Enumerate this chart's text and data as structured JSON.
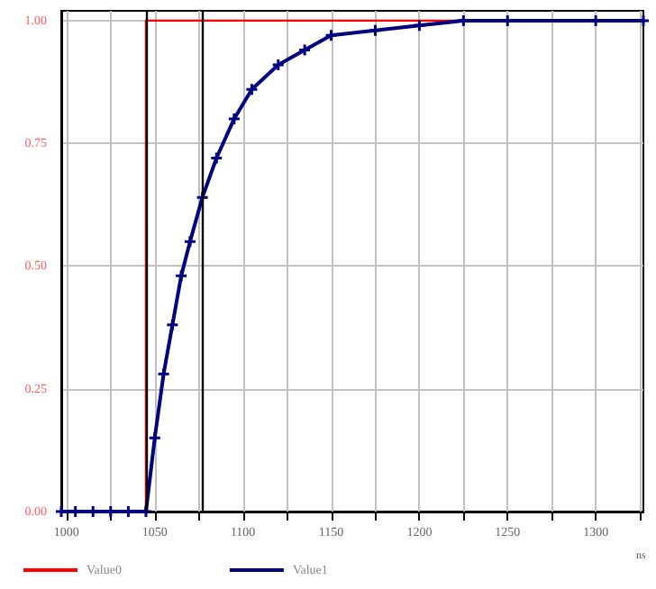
{
  "chart_data": {
    "type": "line",
    "xlabel": "ns",
    "xlim": [
      997,
      1327
    ],
    "ylim": [
      0,
      1.02
    ],
    "xticks": [
      1000,
      {
        "value": 1025,
        "label": null
      },
      1050,
      {
        "value": 1075,
        "label": null
      },
      1100,
      {
        "value": 1125,
        "label": null
      },
      1150,
      {
        "value": 1175,
        "label": null
      },
      1200,
      {
        "value": 1225,
        "label": null
      },
      1250,
      {
        "value": 1275,
        "label": null
      },
      1300,
      {
        "value": 1325,
        "label": null
      }
    ],
    "yticks": [
      {
        "value": 0,
        "label": "0.00"
      },
      0.25,
      {
        "value": 0.5,
        "label": "0.50"
      },
      0.75,
      {
        "value": 1,
        "label": "1.00"
      }
    ],
    "grid": true,
    "legend": "bottom left",
    "ref_lines": [
      {
        "axis": "x",
        "value": 1045,
        "color": "#000000"
      },
      {
        "axis": "x",
        "value": 1077,
        "color": "#000000"
      }
    ],
    "series": [
      {
        "name": "Value0",
        "color": "#ff0000",
        "marker": "none",
        "x": [
          997,
          1045,
          1045,
          1327
        ],
        "values": [
          0,
          0,
          1,
          1
        ]
      },
      {
        "name": "Value1",
        "color": "#000080",
        "marker": "cross",
        "x": [
          997,
          1005,
          1015,
          1025,
          1035,
          1045,
          1050,
          1055,
          1060,
          1065,
          1070,
          1077,
          1085,
          1095,
          1105,
          1120,
          1135,
          1150,
          1175,
          1200,
          1225,
          1250,
          1300,
          1327
        ],
        "values": [
          0,
          0,
          0,
          0,
          0,
          0,
          0.15,
          0.28,
          0.38,
          0.48,
          0.55,
          0.64,
          0.72,
          0.8,
          0.86,
          0.91,
          0.94,
          0.97,
          0.98,
          0.99,
          1,
          1,
          1,
          1
        ]
      }
    ]
  }
}
